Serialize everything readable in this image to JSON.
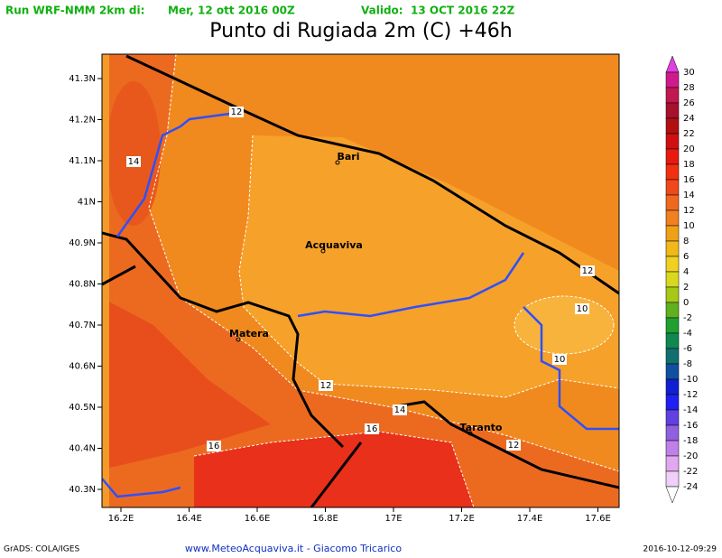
{
  "header": {
    "run_label": "Run WRF-NMM 2km di:",
    "run_date": "Mer, 12 ott 2016 00Z",
    "valid_label": "Valido:",
    "valid_date": "13 OCT 2016 22Z",
    "title": "Punto di Rugiada 2m (C) +46h"
  },
  "axes": {
    "y_labels": [
      "41.3N",
      "41.2N",
      "41.1N",
      "41N",
      "40.9N",
      "40.8N",
      "40.7N",
      "40.6N",
      "40.5N",
      "40.4N",
      "40.3N"
    ],
    "x_labels": [
      "16.2E",
      "16.4E",
      "16.6E",
      "16.8E",
      "17E",
      "17.2E",
      "17.4E",
      "17.6E"
    ]
  },
  "colorbar": {
    "labels": [
      30,
      28,
      26,
      24,
      22,
      20,
      18,
      16,
      14,
      12,
      10,
      8,
      6,
      4,
      2,
      0,
      -2,
      -4,
      -6,
      -8,
      -10,
      -12,
      -14,
      -16,
      -18,
      -20,
      -22,
      -24
    ]
  },
  "places": [
    "Bari",
    "Acquaviva",
    "Matera",
    "Taranto"
  ],
  "contour_labels": [
    12,
    14,
    12,
    10,
    10,
    12,
    14,
    16,
    16,
    12
  ],
  "footer": {
    "left": "GrADS: COLA/IGES",
    "center": "www.MeteoAcquaviva.it - Giacomo Tricarico",
    "right": "2016-10-12-09:29"
  }
}
